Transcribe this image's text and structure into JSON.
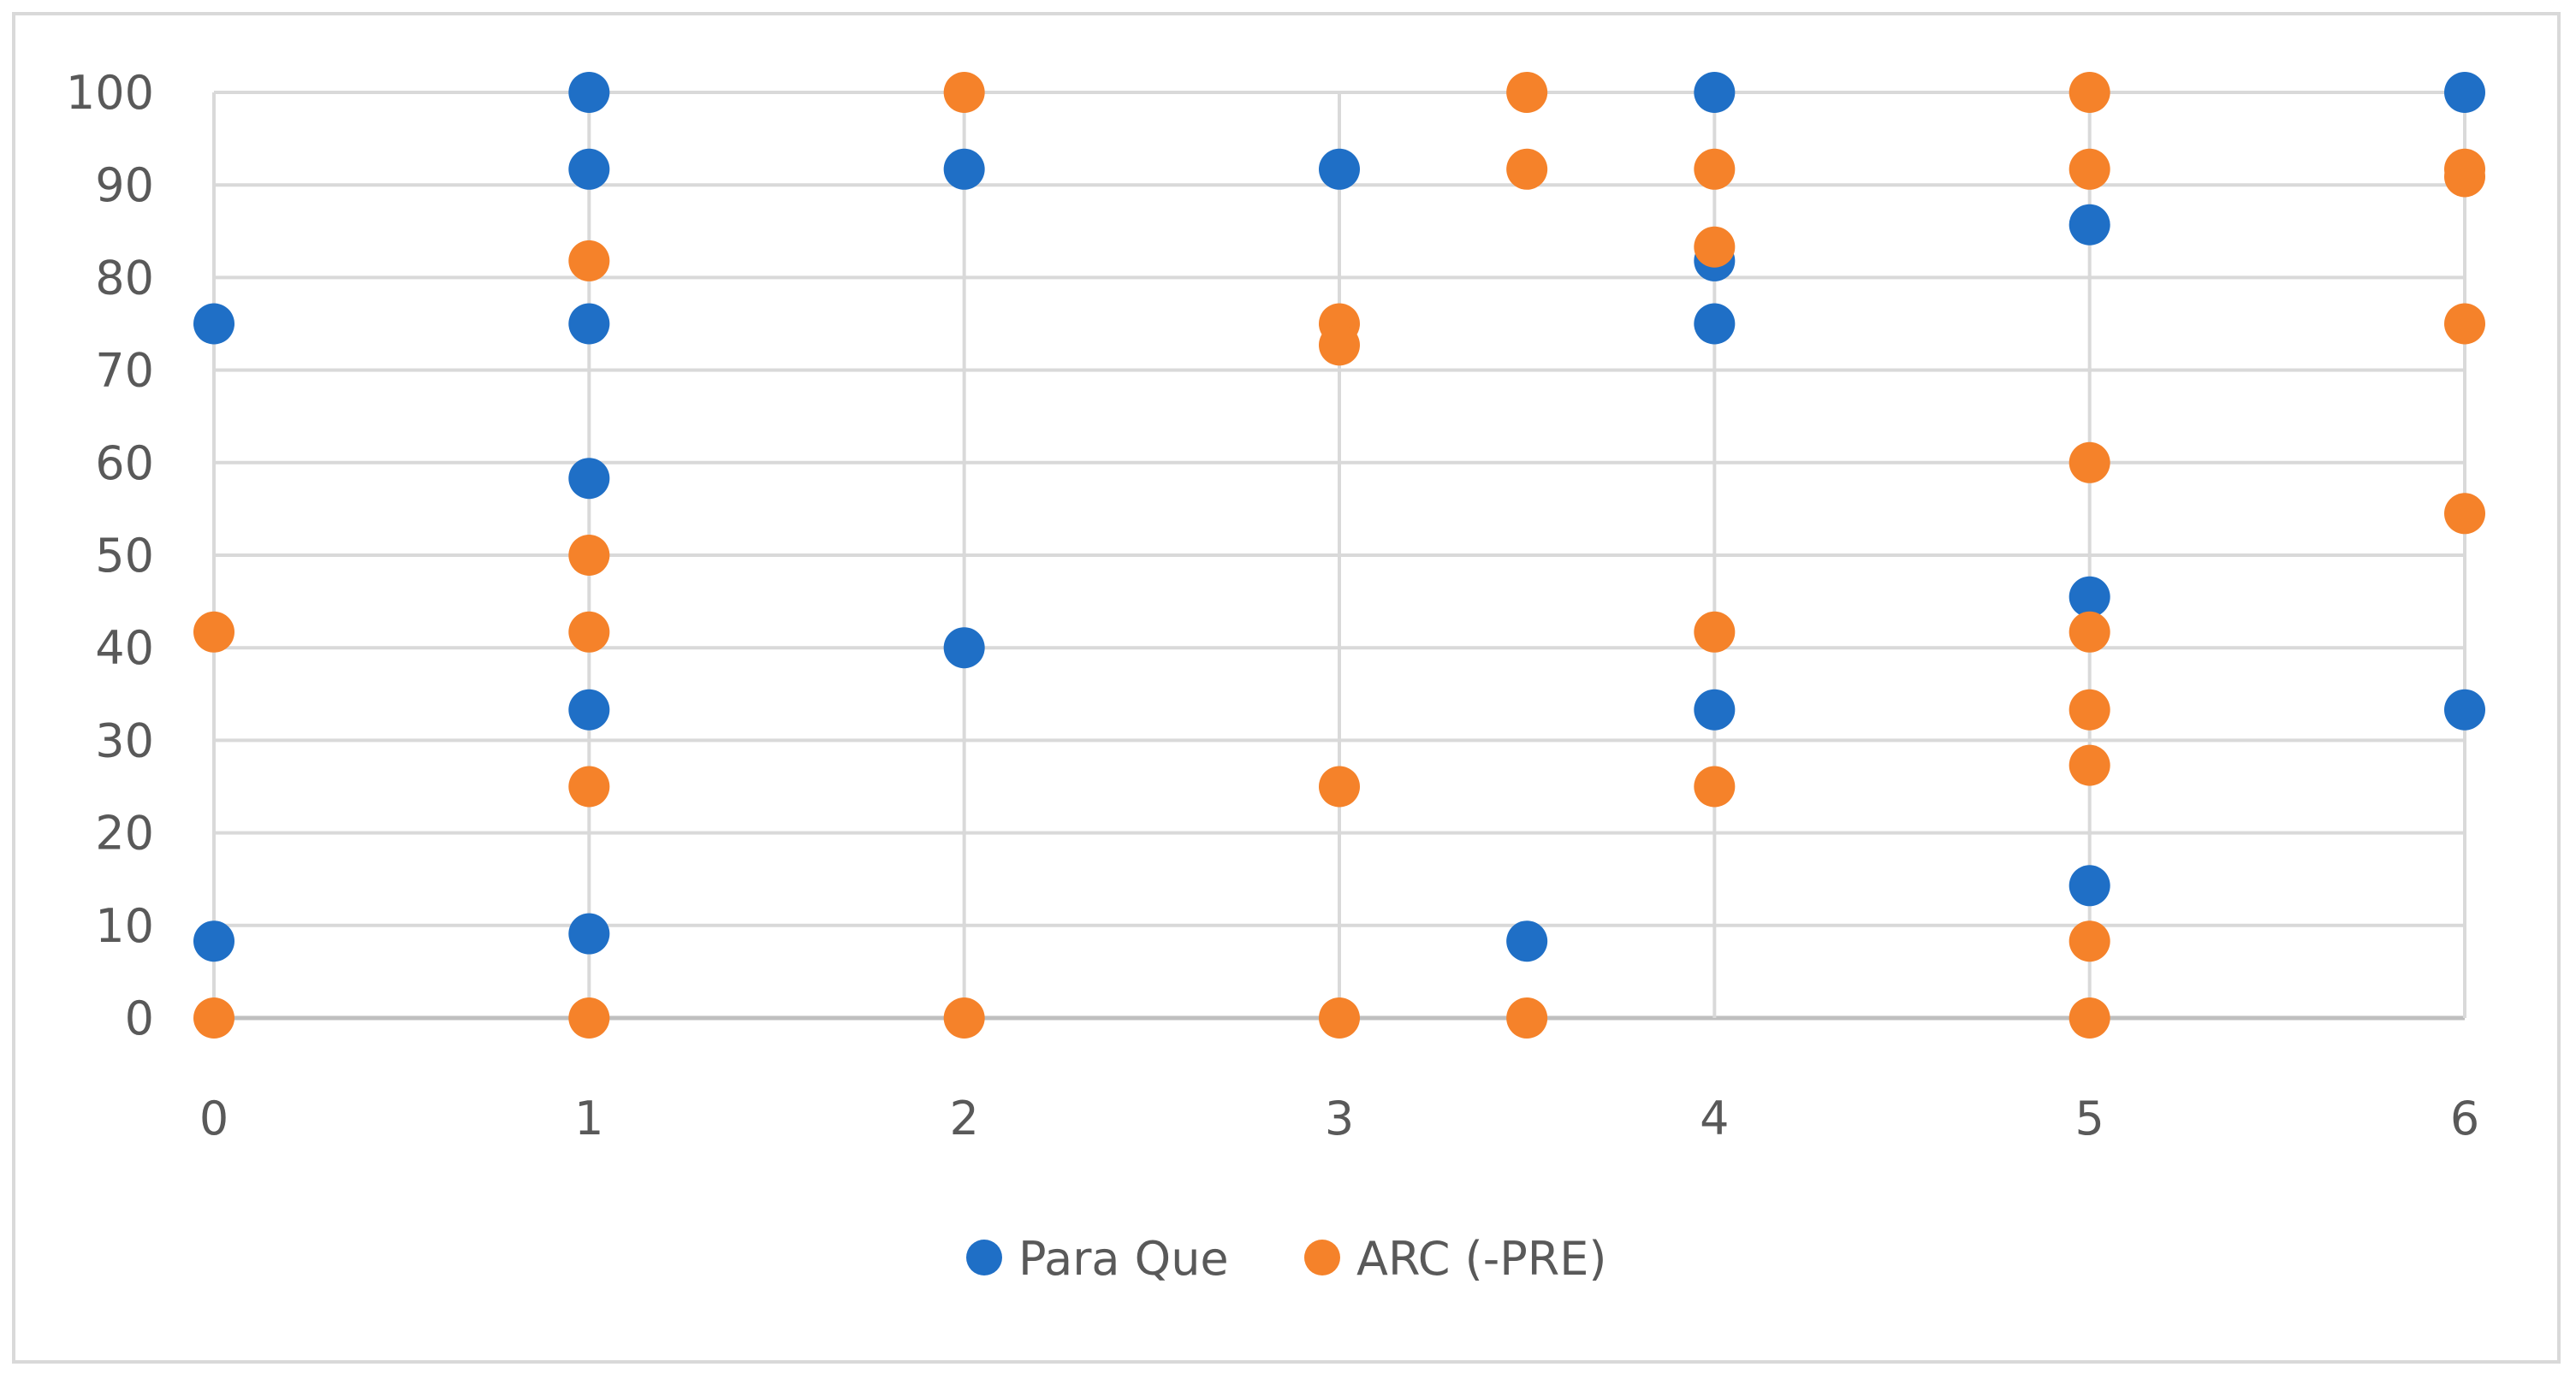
{
  "chart_data": {
    "type": "scatter",
    "title": "",
    "xlabel": "",
    "ylabel": "",
    "xlim": [
      0,
      6
    ],
    "ylim": [
      0,
      100
    ],
    "x_ticks": [
      "0",
      "1",
      "2",
      "3",
      "4",
      "5",
      "6"
    ],
    "y_ticks": [
      "0",
      "10",
      "20",
      "30",
      "40",
      "50",
      "60",
      "70",
      "80",
      "90",
      "100"
    ],
    "grid": "both",
    "legend_position": "bottom",
    "series": [
      {
        "name": "Para Que",
        "color": "#1f6fc6",
        "points": [
          [
            0,
            75
          ],
          [
            0,
            8.3
          ],
          [
            1,
            100
          ],
          [
            1,
            91.7
          ],
          [
            1,
            75
          ],
          [
            1,
            58.3
          ],
          [
            1,
            33.3
          ],
          [
            1,
            9.1
          ],
          [
            2,
            91.7
          ],
          [
            2,
            40
          ],
          [
            3,
            91.7
          ],
          [
            3.5,
            8.3
          ],
          [
            4,
            100
          ],
          [
            4,
            81.8
          ],
          [
            4,
            75
          ],
          [
            4,
            33.3
          ],
          [
            5,
            85.7
          ],
          [
            5,
            45.5
          ],
          [
            5,
            14.3
          ],
          [
            6,
            100
          ],
          [
            6,
            33.3
          ]
        ]
      },
      {
        "name": "ARC (-PRE)",
        "color": "#f5822a",
        "points": [
          [
            0,
            41.7
          ],
          [
            0,
            0
          ],
          [
            1,
            81.8
          ],
          [
            1,
            50
          ],
          [
            1,
            41.7
          ],
          [
            1,
            25
          ],
          [
            1,
            0
          ],
          [
            2,
            100
          ],
          [
            2,
            0
          ],
          [
            3,
            75
          ],
          [
            3,
            72.7
          ],
          [
            3,
            25
          ],
          [
            3,
            0
          ],
          [
            3.5,
            100
          ],
          [
            3.5,
            91.7
          ],
          [
            3.5,
            0
          ],
          [
            4,
            91.7
          ],
          [
            4,
            83.3
          ],
          [
            4,
            41.7
          ],
          [
            4,
            25
          ],
          [
            5,
            100
          ],
          [
            5,
            91.7
          ],
          [
            5,
            60
          ],
          [
            5,
            41.7
          ],
          [
            5,
            33.3
          ],
          [
            5,
            27.3
          ],
          [
            5,
            8.3
          ],
          [
            5,
            0
          ],
          [
            6,
            91.7
          ],
          [
            6,
            90.9
          ],
          [
            6,
            75
          ],
          [
            6,
            54.5
          ]
        ]
      }
    ]
  },
  "legend": {
    "items": [
      {
        "label": "Para Que",
        "color": "#1f6fc6"
      },
      {
        "label": "ARC (-PRE)",
        "color": "#f5822a"
      }
    ]
  }
}
